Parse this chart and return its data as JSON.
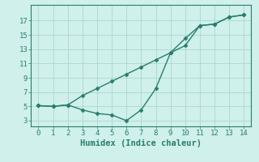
{
  "line1_x": [
    0,
    1,
    2,
    3,
    4,
    5,
    6,
    7,
    8,
    9,
    10,
    11,
    12,
    13,
    14
  ],
  "line1_y": [
    5.1,
    5.0,
    5.2,
    6.5,
    7.5,
    8.5,
    9.5,
    10.5,
    11.5,
    12.5,
    13.5,
    16.3,
    16.5,
    17.5,
    17.8
  ],
  "line2_x": [
    0,
    1,
    2,
    3,
    4,
    5,
    6,
    7,
    8,
    9,
    10,
    11,
    12,
    13,
    14
  ],
  "line2_y": [
    5.1,
    5.0,
    5.2,
    4.5,
    4.0,
    3.8,
    3.0,
    4.5,
    7.5,
    12.5,
    14.5,
    16.3,
    16.5,
    17.5,
    17.8
  ],
  "color": "#2a7d6e",
  "bg_color": "#cff0eb",
  "grid_color": "#aad8d0",
  "xlabel": "Humidex (Indice chaleur)",
  "xlim": [
    -0.5,
    14.5
  ],
  "ylim": [
    2.2,
    19.2
  ],
  "xticks": [
    0,
    1,
    2,
    3,
    4,
    5,
    6,
    7,
    8,
    9,
    10,
    11,
    12,
    13,
    14
  ],
  "yticks": [
    3,
    5,
    7,
    9,
    11,
    13,
    15,
    17
  ],
  "marker": "D",
  "markersize": 2.5,
  "linewidth": 1.0,
  "xlabel_fontsize": 7.5,
  "tick_fontsize": 6.5
}
